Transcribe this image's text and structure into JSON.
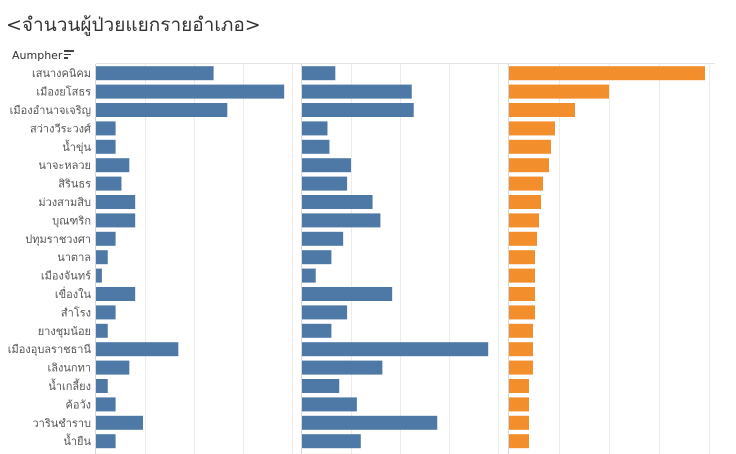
{
  "title": "<จำนวนผู้ป่วยแยกรายอำเภอ>",
  "row_header": "Aumpher",
  "sort_icon": "sort-descending-icon",
  "colors": {
    "blue": "#4e79a7",
    "orange": "#f28e2b"
  },
  "chart_data": [
    {
      "type": "bar",
      "orientation": "horizontal",
      "categories": [
        "เสนางคนิคม",
        "เมืองยโสธร",
        "เมืองอำนาจเจริญ",
        "สว่างวีระวงศ์",
        "น้ำขุ่น",
        "นาจะหลวย",
        "สิรินธร",
        "ม่วงสามสิบ",
        "บุณฑริก",
        "ปทุมราชวงศา",
        "นาตาล",
        "เมืองจันทร์",
        "เขื่องใน",
        "สำโรง",
        "ยางชุมน้อย",
        "เมืองอุบลราชธานี",
        "เลิงนกทา",
        "น้ำเกลี้ยง",
        "ค้อวัง",
        "วารินชำราบ",
        "น้ำยืน"
      ],
      "values": [
        60,
        96,
        67,
        10,
        10,
        17,
        13,
        20,
        20,
        10,
        6,
        3,
        20,
        10,
        6,
        42,
        17,
        6,
        10,
        24,
        10
      ],
      "color": "#4e79a7"
    },
    {
      "type": "bar",
      "orientation": "horizontal",
      "categories": [
        "เสนางคนิคม",
        "เมืองยโสธร",
        "เมืองอำนาจเจริญ",
        "สว่างวีระวงศ์",
        "น้ำขุ่น",
        "นาจะหลวย",
        "สิรินธร",
        "ม่วงสามสิบ",
        "บุณฑริก",
        "ปทุมราชวงศา",
        "นาตาล",
        "เมืองจันทร์",
        "เขื่องใน",
        "สำโรง",
        "ยางชุมน้อย",
        "เมืองอุบลราชธานี",
        "เลิงนกทา",
        "น้ำเกลี้ยง",
        "ค้อวัง",
        "วารินชำราบ",
        "น้ำยืน"
      ],
      "values": [
        17,
        56,
        57,
        13,
        14,
        25,
        23,
        36,
        40,
        21,
        15,
        7,
        46,
        23,
        15,
        95,
        41,
        19,
        28,
        69,
        30
      ],
      "color": "#4e79a7"
    },
    {
      "type": "bar",
      "orientation": "horizontal",
      "categories": [
        "เสนางคนิคม",
        "เมืองยโสธร",
        "เมืองอำนาจเจริญ",
        "สว่างวีระวงศ์",
        "น้ำขุ่น",
        "นาจะหลวย",
        "สิรินธร",
        "ม่วงสามสิบ",
        "บุณฑริก",
        "ปทุมราชวงศา",
        "นาตาล",
        "เมืองจันทร์",
        "เขื่องใน",
        "สำโรง",
        "ยางชุมน้อย",
        "เมืองอุบลราชธานี",
        "เลิงนกทา",
        "น้ำเกลี้ยง",
        "ค้อวัง",
        "วารินชำราบ",
        "น้ำยืน"
      ],
      "values": [
        98,
        50,
        33,
        23,
        21,
        20,
        17,
        16,
        15,
        14,
        13,
        13,
        13,
        13,
        12,
        12,
        12,
        10,
        10,
        10,
        10
      ],
      "color": "#f28e2b"
    }
  ]
}
